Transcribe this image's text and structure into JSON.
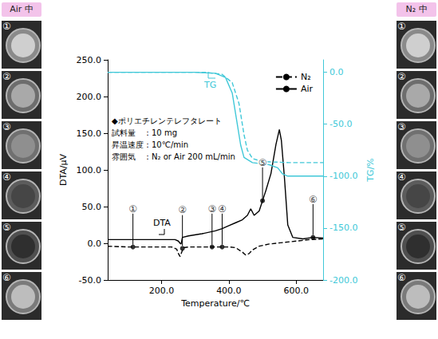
{
  "chart_data": {
    "type": "line",
    "xlabel": "Temperature/℃",
    "ylabel": "DTA/μV",
    "y2label": "TG/%",
    "xlim": [
      40,
      680
    ],
    "xticks": [
      {
        "value": 200,
        "label": "200.0"
      },
      {
        "value": 400,
        "label": "400.0"
      },
      {
        "value": 600,
        "label": "600.0"
      }
    ],
    "ylim": [
      -50,
      250
    ],
    "yticks": [
      {
        "value": -50,
        "label": "-50.0"
      },
      {
        "value": 0,
        "label": "0.0"
      },
      {
        "value": 50,
        "label": "50.0"
      },
      {
        "value": 100,
        "label": "100.0"
      },
      {
        "value": 150,
        "label": "150.0"
      },
      {
        "value": 200,
        "label": "200.0"
      },
      {
        "value": 250,
        "label": "250.0"
      }
    ],
    "y2lim": [
      -200,
      12
    ],
    "y2ticks": [
      {
        "value": -200,
        "label": "-200.0"
      },
      {
        "value": -150,
        "label": "-150.0"
      },
      {
        "value": -100,
        "label": "-100.0"
      },
      {
        "value": -50,
        "label": "-50.0"
      },
      {
        "value": 0,
        "label": "0.0"
      }
    ],
    "grid": false,
    "legend": "upper right",
    "series": [
      {
        "name": "N₂",
        "color": "#000000",
        "line_style": "dashed",
        "x": [
          40,
          100,
          150,
          200,
          230,
          245,
          250,
          255,
          260,
          265,
          280,
          320,
          360,
          400,
          420,
          440,
          450,
          460,
          470,
          490,
          520,
          560,
          600,
          640,
          680
        ],
        "values": [
          -4,
          -5,
          -5,
          -5,
          -5,
          -8,
          -14,
          -18,
          -12,
          -6,
          -5,
          -5,
          -5,
          -5,
          -6,
          -12,
          -16,
          -14,
          -9,
          -4,
          -1,
          1,
          3,
          5,
          6
        ]
      },
      {
        "name": "Air",
        "color": "#000000",
        "line_style": "solid",
        "x": [
          40,
          100,
          150,
          200,
          240,
          250,
          255,
          258,
          262,
          280,
          320,
          360,
          380,
          400,
          420,
          440,
          455,
          465,
          475,
          490,
          500,
          510,
          525,
          540,
          550,
          556,
          565,
          575,
          590,
          620,
          650,
          680
        ],
        "values": [
          5,
          5,
          5,
          5,
          5,
          3,
          0,
          -1,
          8,
          10,
          13,
          17,
          20,
          24,
          28,
          32,
          38,
          47,
          38,
          44,
          58,
          72,
          95,
          135,
          155,
          140,
          90,
          25,
          8,
          6,
          8,
          7
        ]
      },
      {
        "name": "N₂",
        "color": "#40c8d8",
        "line_style": "dashed",
        "axis": "y2",
        "x": [
          40,
          330,
          380,
          410,
          430,
          445,
          455,
          470,
          500,
          580,
          680
        ],
        "values": [
          0,
          0,
          -2,
          -10,
          -30,
          -60,
          -75,
          -83,
          -86,
          -87,
          -87
        ]
      },
      {
        "name": "Air",
        "color": "#40c8d8",
        "line_style": "solid",
        "axis": "y2",
        "x": [
          40,
          300,
          360,
          390,
          410,
          425,
          435,
          445,
          470,
          520,
          545,
          560,
          575,
          590,
          680
        ],
        "values": [
          0,
          0,
          -1,
          -5,
          -20,
          -50,
          -70,
          -82,
          -87,
          -89,
          -92,
          -98,
          -100,
          -100,
          -100
        ]
      },
      {
        "type": "scatter",
        "color": "#000000",
        "marker": "circle",
        "x": [
          115,
          262,
          350,
          380,
          500,
          650
        ],
        "values": [
          -5,
          -7,
          -5,
          -5,
          58,
          8
        ],
        "labels": [
          "①",
          "②",
          "③",
          "④",
          "⑤",
          "⑥"
        ]
      }
    ],
    "annotations": [
      "TG",
      "DTA"
    ],
    "info": [
      "◆ポリエチレンテレフタレート",
      "試料量　：10 mg",
      "昇温速度：10℃/min",
      "雰囲気　：N₂ or Air 200 mL/min"
    ]
  },
  "photo_columns": [
    {
      "title": "Air 中",
      "labels": [
        "①",
        "②",
        "③",
        "④",
        "⑤",
        "⑥"
      ]
    },
    {
      "title": "N₂ 中",
      "labels": [
        "①",
        "②",
        "③",
        "④",
        "⑤",
        "⑥"
      ]
    }
  ]
}
